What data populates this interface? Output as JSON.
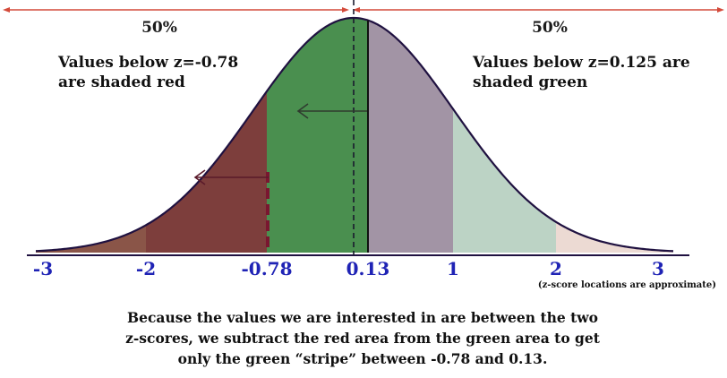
{
  "diagram": {
    "left_percent": "50%",
    "right_percent": "50%",
    "red_note": [
      "Values below z=-0.78",
      "are shaded red"
    ],
    "green_note": [
      "Values below z=0.125 are",
      "shaded green"
    ],
    "axis_ticks": [
      {
        "label": "-3",
        "z": -3
      },
      {
        "label": "-2",
        "z": -2
      },
      {
        "label": "-0.78",
        "z": -0.78
      },
      {
        "label": "0.13",
        "z": 0.13
      },
      {
        "label": "1",
        "z": 1
      },
      {
        "label": "2",
        "z": 2
      },
      {
        "label": "3",
        "z": 3
      }
    ],
    "approx_note": "(z-score locations are approximate)",
    "caption": [
      "Because the values we are interested in are between the two",
      "z-scores, we subtract the red area from the green area to get",
      "only the green “stripe” between -0.78 and 0.13."
    ],
    "colors": {
      "red_region": "#8a5548",
      "red_band": "#7d3e3c",
      "green_stripe": "#4a8f4f",
      "purple_band": "#a294a5",
      "light_green": "#bcd3c5",
      "beige": "#ecdad3",
      "outline": "#1f1140",
      "axis_label": "#1f23b5",
      "arrow_red": "#d44a3a",
      "marker": "#7a1630"
    }
  }
}
